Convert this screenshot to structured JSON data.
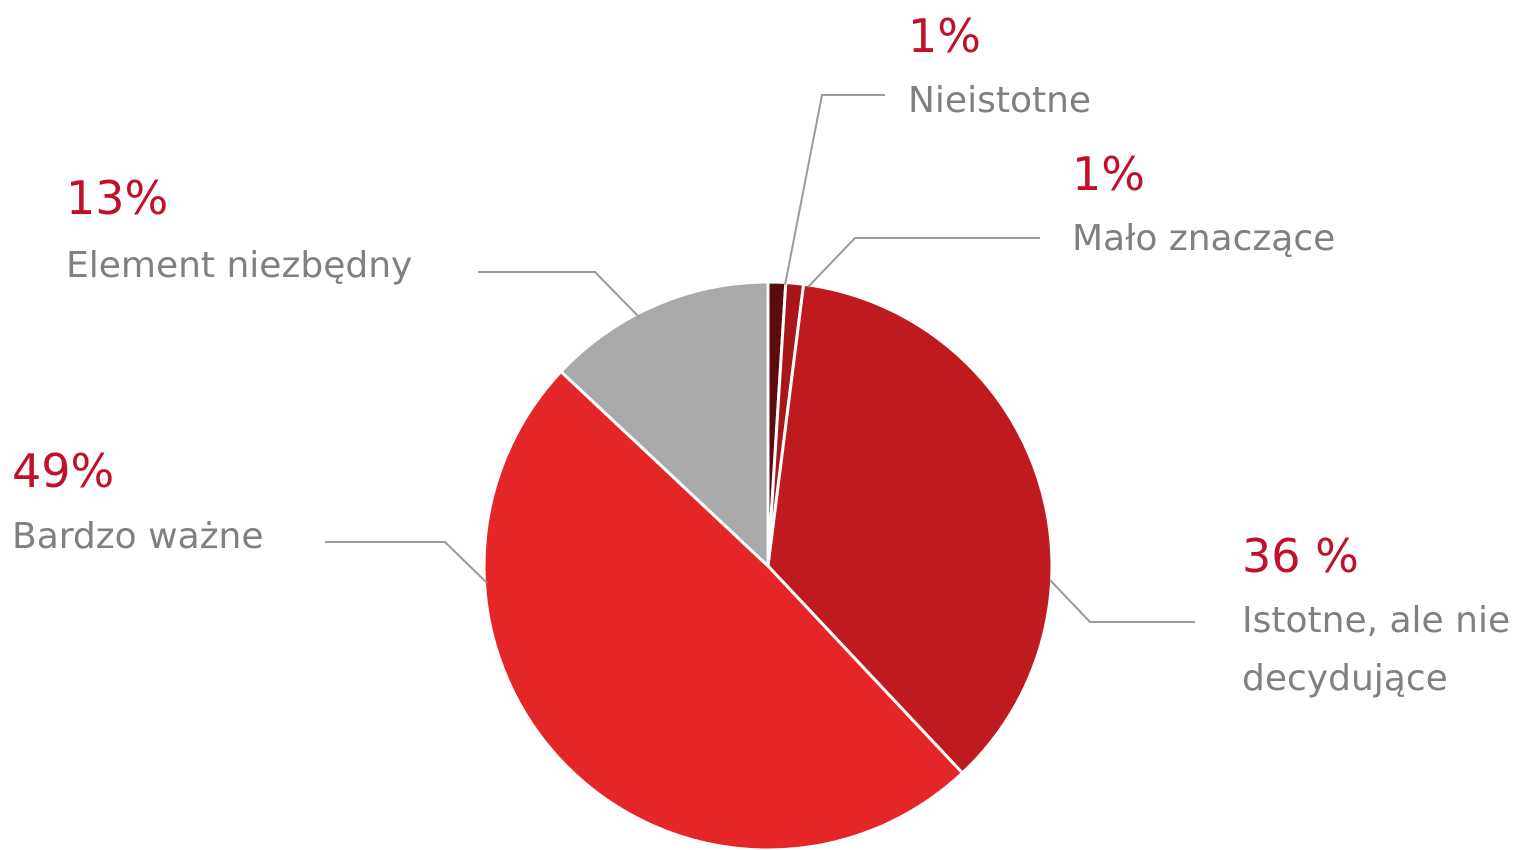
{
  "chart_data": {
    "type": "pie",
    "categories": [
      "Nieistotne",
      "Mało znaczące",
      "Istotne, ale nie decydujące",
      "Bardzo ważne",
      "Element niezbędny"
    ],
    "values": [
      1,
      1,
      36,
      49,
      13
    ],
    "value_labels": [
      "1%",
      "1%",
      "36 %",
      "49%",
      "13%"
    ],
    "colors": [
      "#5a0b0c",
      "#a8161b",
      "#bf1a20",
      "#e52628",
      "#a9a9a9"
    ]
  }
}
